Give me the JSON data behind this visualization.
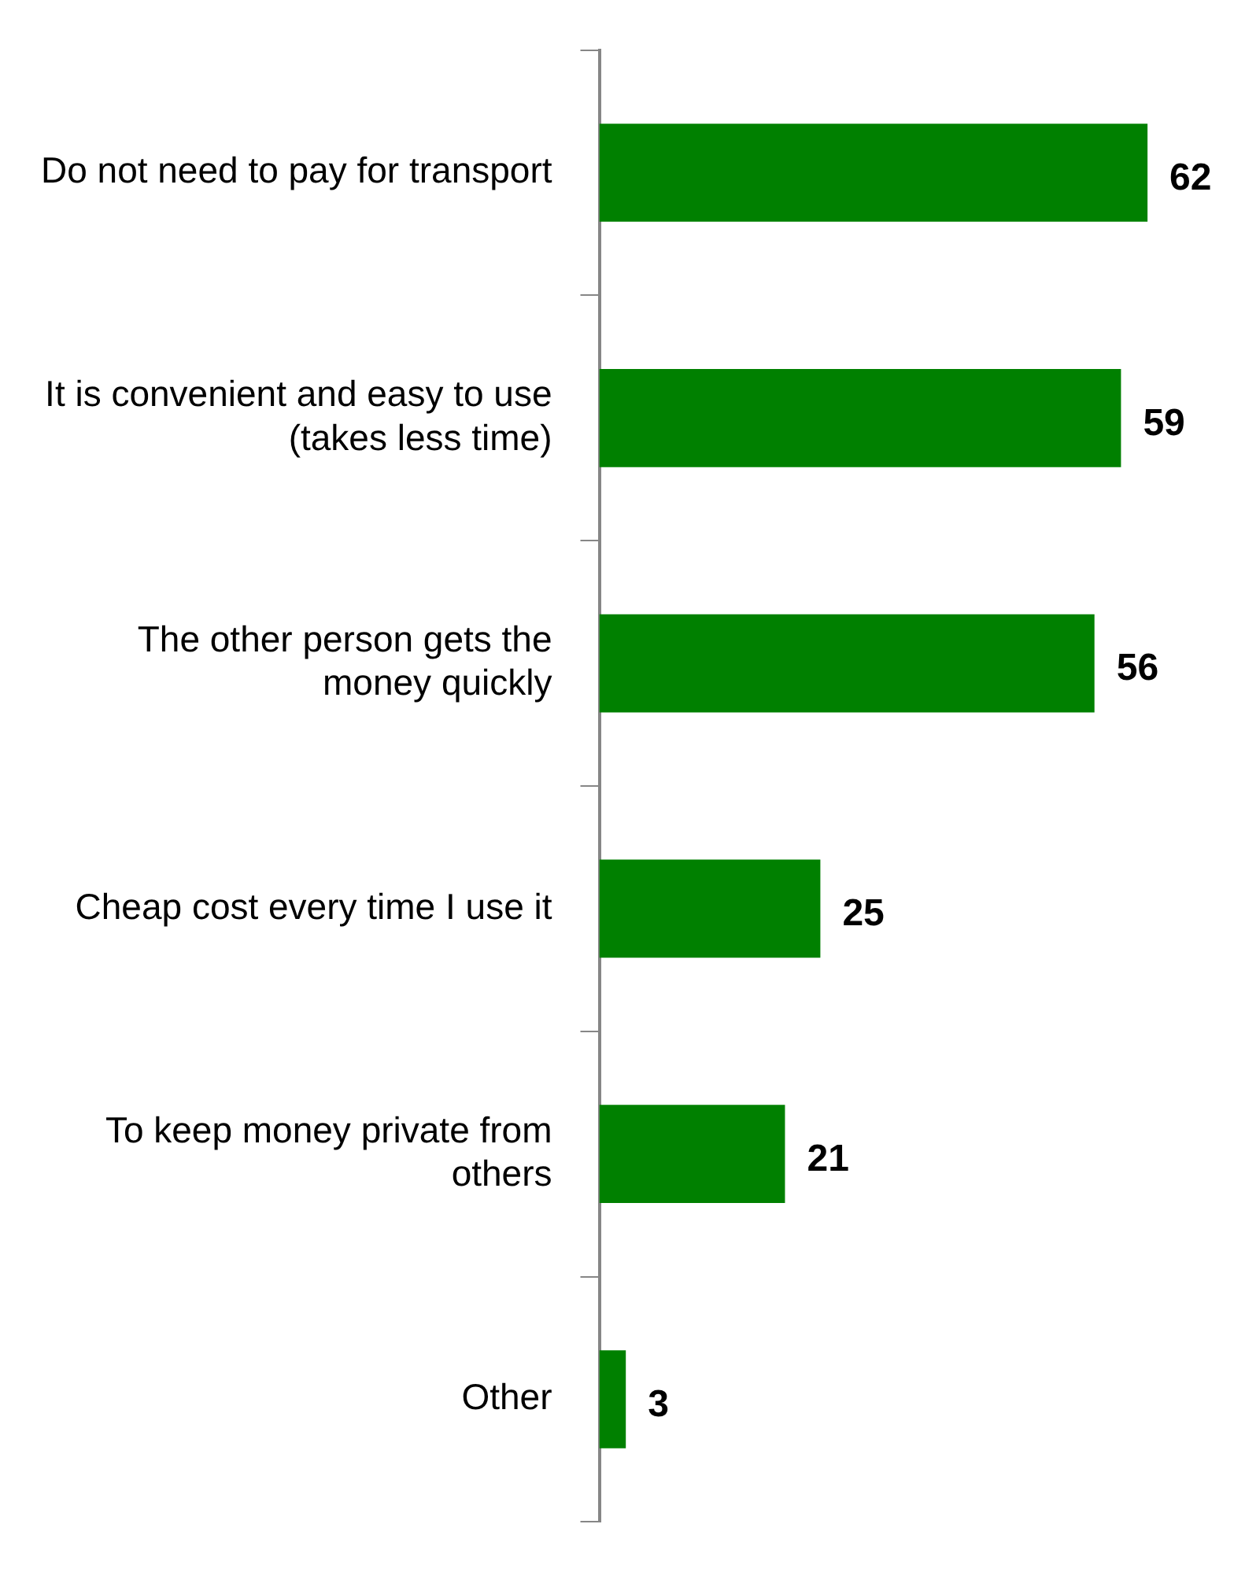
{
  "chart_data": {
    "type": "bar",
    "orientation": "horizontal",
    "categories": [
      "Do not need to pay for transport",
      "It is convenient and easy to use (takes less time)",
      "The other person gets the money quickly",
      "Cheap cost every time I use it",
      "To keep money private from others",
      "Other"
    ],
    "values": [
      62,
      59,
      56,
      25,
      21,
      3
    ],
    "color": "#008000",
    "data_labels": true,
    "legend": false
  }
}
